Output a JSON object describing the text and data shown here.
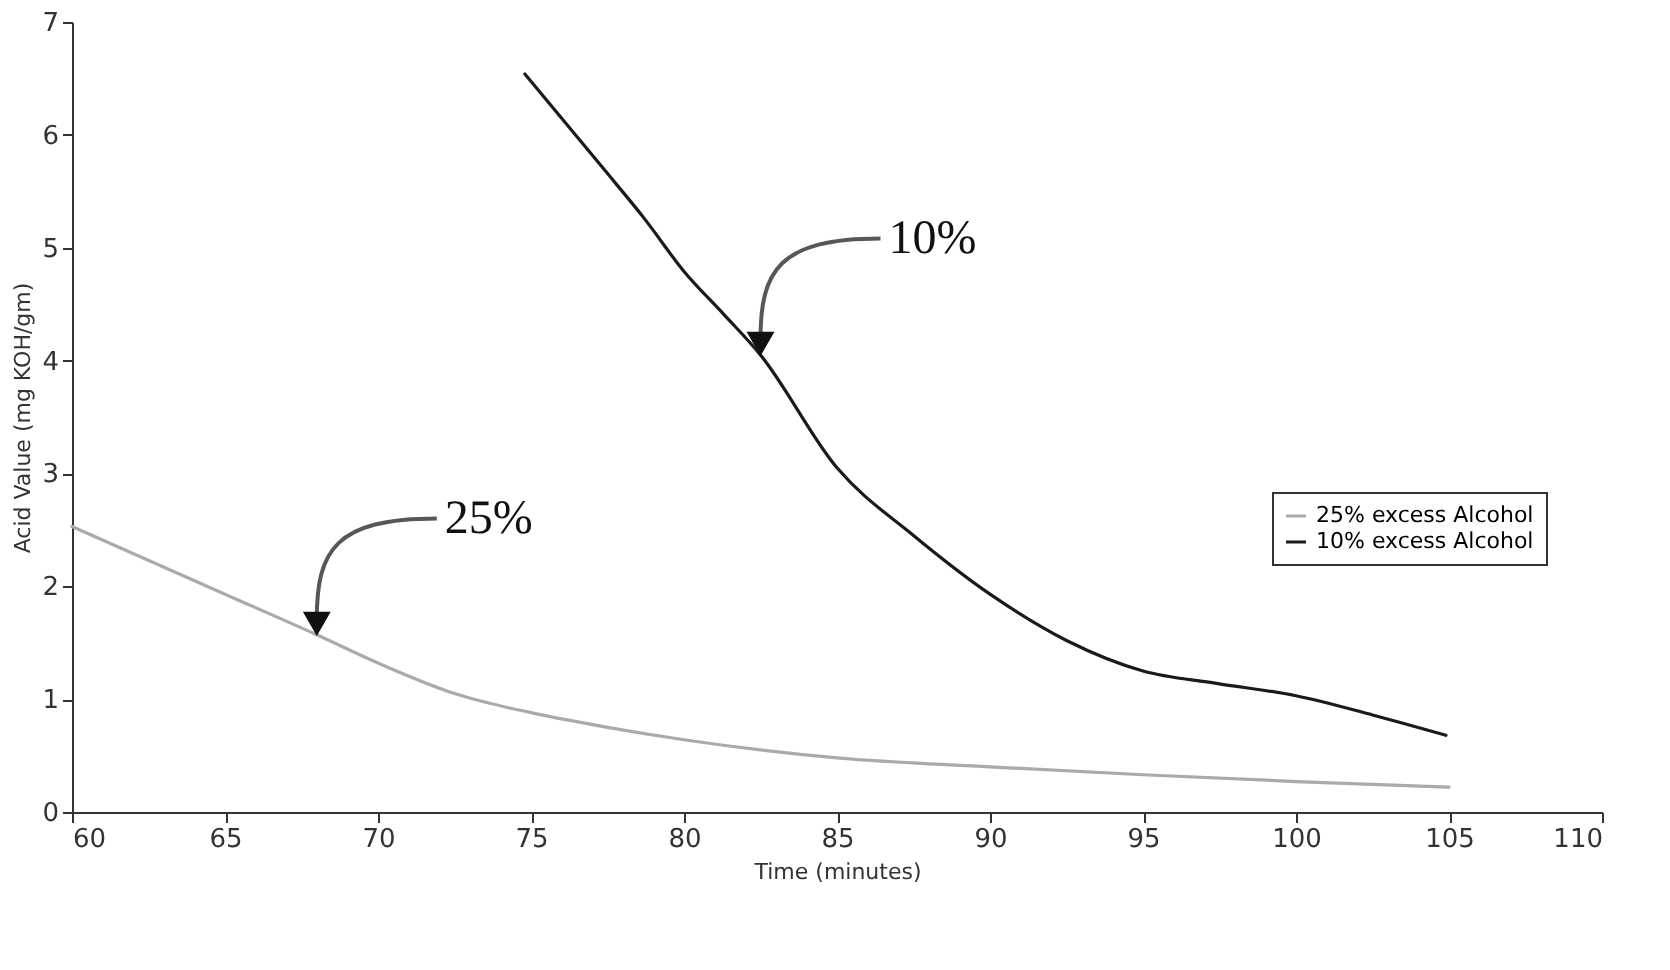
{
  "chart_data": {
    "type": "line",
    "xlabel": "Time (minutes)",
    "ylabel": "Acid Value (mg KOH/gm)",
    "series": [
      {
        "name": "25% excess Alcohol",
        "color": "#aaaaaa",
        "x": [
          60,
          65,
          68,
          70,
          72.5,
          75,
          77.5,
          80,
          82.5,
          85,
          90,
          95,
          100,
          105
        ],
        "values": [
          2.53,
          1.93,
          1.57,
          1.32,
          1.05,
          0.88,
          0.75,
          0.64,
          0.55,
          0.48,
          0.4,
          0.33,
          0.27,
          0.22
        ]
      },
      {
        "name": "10% excess Alcohol",
        "color": "#1a1a1a",
        "x": [
          74.8,
          77.4,
          78.7,
          80,
          81.3,
          82.5,
          85,
          87.5,
          90,
          92.5,
          95,
          97.4,
          100,
          102.5,
          104.9
        ],
        "values": [
          6.54,
          5.69,
          5.26,
          4.79,
          4.41,
          4.05,
          3.05,
          2.45,
          1.93,
          1.52,
          1.25,
          1.14,
          1.03,
          0.86,
          0.68
        ]
      }
    ],
    "annotations": [
      {
        "text": "25%",
        "x": 68,
        "y": 1.57
      },
      {
        "text": "10%",
        "x": 82.5,
        "y": 4.05
      }
    ],
    "xlim": [
      60,
      110
    ],
    "xticks": [
      60,
      65,
      70,
      75,
      80,
      85,
      90,
      95,
      100,
      105,
      110
    ],
    "ylim": [
      0,
      7
    ],
    "yticks": [
      0,
      1,
      2,
      3,
      4,
      5,
      6,
      7
    ],
    "grid": false,
    "legend": "right",
    "line_style": "solid",
    "marker": "none"
  }
}
